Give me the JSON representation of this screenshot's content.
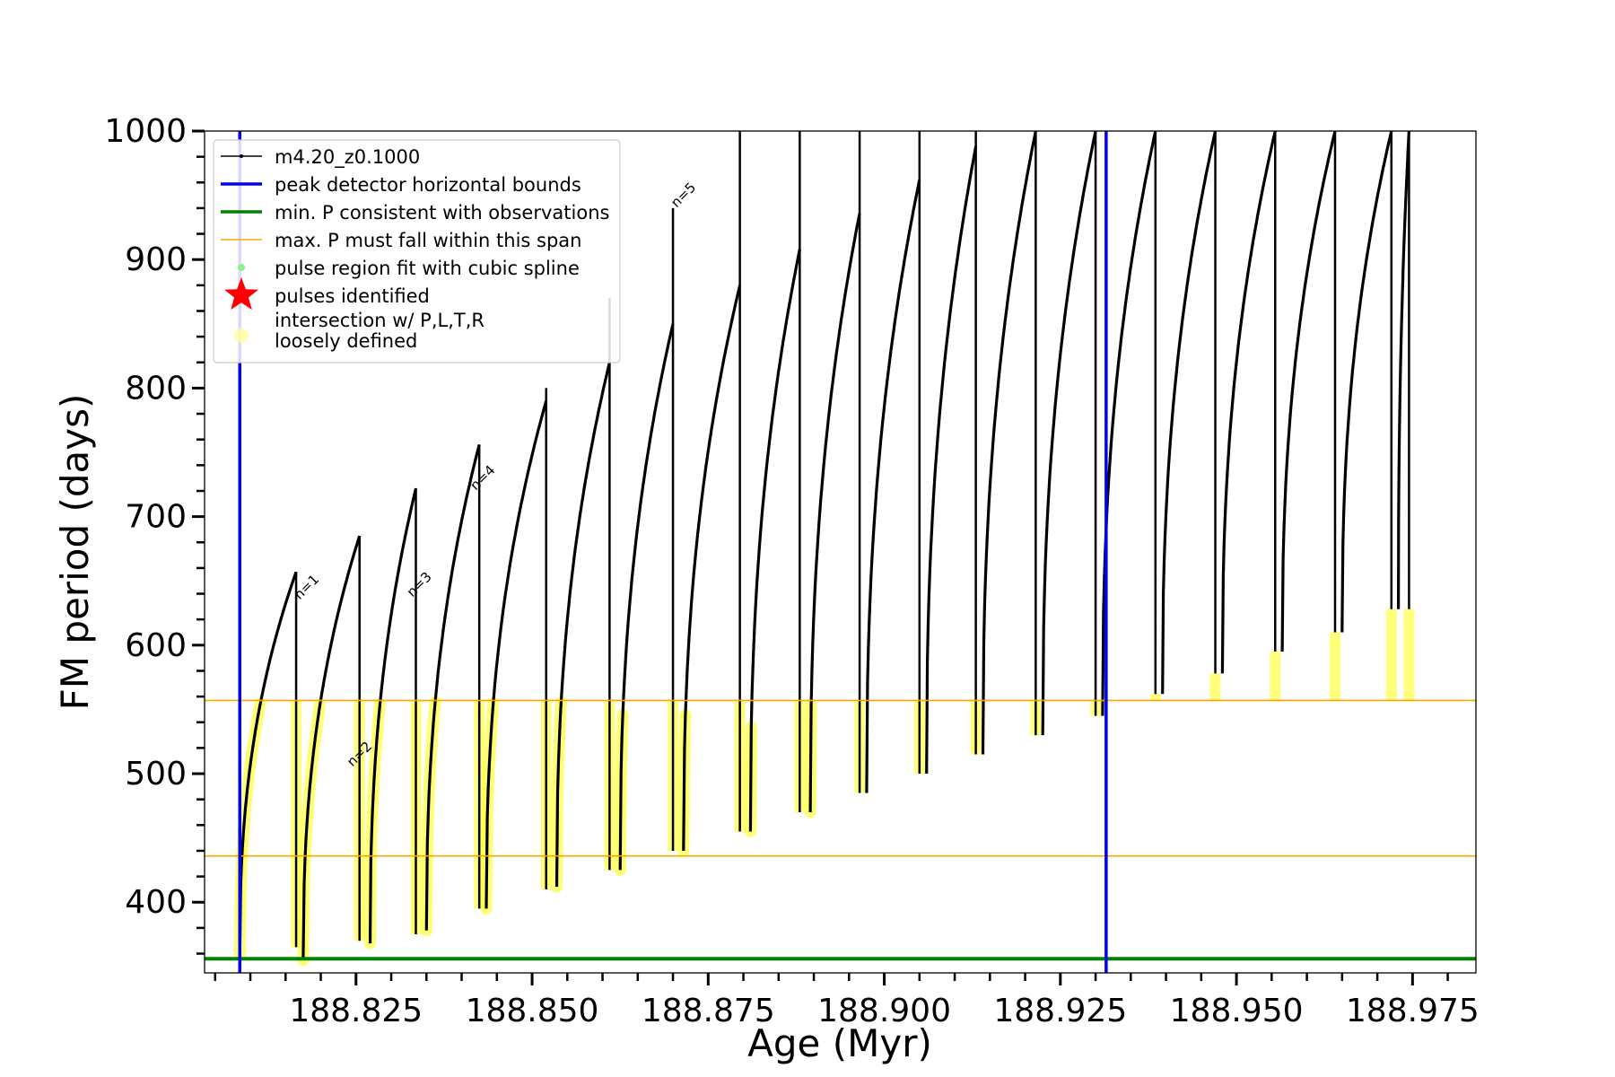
{
  "chart_data": {
    "type": "line",
    "xlabel": "Age (Myr)",
    "ylabel": "FM period (days)",
    "xlim": [
      188.8035,
      188.984
    ],
    "ylim": [
      345,
      1000
    ],
    "xticks": [
      188.825,
      188.85,
      188.875,
      188.9,
      188.925,
      188.95,
      188.975
    ],
    "xtick_labels": [
      "188.825",
      "188.850",
      "188.875",
      "188.900",
      "188.925",
      "188.950",
      "188.975"
    ],
    "yticks": [
      400,
      500,
      600,
      700,
      800,
      900,
      1000
    ],
    "ytick_labels": [
      "400",
      "500",
      "600",
      "700",
      "800",
      "900",
      "1000"
    ],
    "grid": false,
    "legend_position": "top-left",
    "legend": [
      {
        "label": "m4.20_z0.1000",
        "color": "#000000",
        "style": "line-marker"
      },
      {
        "label": "peak detector horizontal bounds",
        "color": "#0000ff",
        "style": "line"
      },
      {
        "label": "min. P consistent with observations",
        "color": "#008000",
        "style": "line"
      },
      {
        "label": "max. P must fall within this span",
        "color": "#ffa500",
        "style": "thin-line"
      },
      {
        "label": "pulse region fit with cubic spline",
        "color": "#90ee90",
        "style": "dot"
      },
      {
        "label": "pulses identified",
        "color": "#ff0000",
        "style": "star"
      },
      {
        "label": "intersection w/ P,L,T,R\nloosely defined",
        "color": "#ffff99",
        "style": "circle"
      }
    ],
    "vertical_lines": [
      188.8085,
      188.9315
    ],
    "horizontal_lines": [
      {
        "y": 356,
        "color": "#008000"
      },
      {
        "y": 557,
        "color": "#ffa500"
      },
      {
        "y": 436,
        "color": "#ffa500"
      }
    ],
    "series": [
      {
        "name": "m4.20_z0.1000",
        "color": "#000000",
        "pulses": [
          {
            "start": 188.8085,
            "end": 188.8165,
            "low": 360,
            "peak": 657,
            "drop_to": 365,
            "spike": 657
          },
          {
            "start": 188.8175,
            "end": 188.8255,
            "low": 355,
            "peak": 685,
            "drop_to": 370,
            "spike": 685
          },
          {
            "start": 188.827,
            "end": 188.8335,
            "low": 368,
            "peak": 722,
            "drop_to": 375,
            "spike": 722
          },
          {
            "start": 188.835,
            "end": 188.8425,
            "low": 378,
            "peak": 756,
            "drop_to": 395,
            "spike": 756
          },
          {
            "start": 188.8435,
            "end": 188.852,
            "low": 395,
            "peak": 790,
            "drop_to": 410,
            "spike": 800
          },
          {
            "start": 188.8535,
            "end": 188.861,
            "low": 412,
            "peak": 820,
            "drop_to": 425,
            "spike": 870
          },
          {
            "start": 188.8625,
            "end": 188.87,
            "low": 425,
            "peak": 850,
            "drop_to": 440,
            "spike": 940
          },
          {
            "start": 188.8715,
            "end": 188.8795,
            "low": 440,
            "peak": 880,
            "drop_to": 455,
            "spike": 1000
          },
          {
            "start": 188.881,
            "end": 188.888,
            "low": 455,
            "peak": 908,
            "drop_to": 470,
            "spike": 1000
          },
          {
            "start": 188.8895,
            "end": 188.8965,
            "low": 470,
            "peak": 936,
            "drop_to": 485,
            "spike": 1000
          },
          {
            "start": 188.8975,
            "end": 188.905,
            "low": 485,
            "peak": 962,
            "drop_to": 500,
            "spike": 1000
          },
          {
            "start": 188.906,
            "end": 188.913,
            "low": 500,
            "peak": 988,
            "drop_to": 515,
            "spike": 1000
          },
          {
            "start": 188.914,
            "end": 188.9215,
            "low": 515,
            "peak": 1000,
            "drop_to": 530,
            "spike": 1000
          },
          {
            "start": 188.9225,
            "end": 188.93,
            "low": 530,
            "peak": 1000,
            "drop_to": 545,
            "spike": 1000
          },
          {
            "start": 188.931,
            "end": 188.9385,
            "low": 545,
            "peak": 1000,
            "drop_to": 562,
            "spike": 1000
          },
          {
            "start": 188.9395,
            "end": 188.947,
            "low": 562,
            "peak": 1000,
            "drop_to": 578,
            "spike": 1000
          },
          {
            "start": 188.948,
            "end": 188.9555,
            "low": 578,
            "peak": 1000,
            "drop_to": 595,
            "spike": 1000
          },
          {
            "start": 188.9565,
            "end": 188.964,
            "low": 595,
            "peak": 1000,
            "drop_to": 610,
            "spike": 1000
          },
          {
            "start": 188.965,
            "end": 188.972,
            "low": 610,
            "peak": 1000,
            "drop_to": 628,
            "spike": 1000
          },
          {
            "start": 188.973,
            "end": 188.9745,
            "low": 628,
            "peak": 1000,
            "drop_to": 628,
            "spike": 1000
          }
        ]
      }
    ],
    "annotations": [
      {
        "text": "n=1",
        "x": 188.817,
        "y": 635
      },
      {
        "text": "n=2",
        "x": 188.8245,
        "y": 505
      },
      {
        "text": "n=3",
        "x": 188.833,
        "y": 637
      },
      {
        "text": "n=4",
        "x": 188.842,
        "y": 720
      },
      {
        "text": "n=5",
        "x": 188.8705,
        "y": 940
      }
    ]
  }
}
